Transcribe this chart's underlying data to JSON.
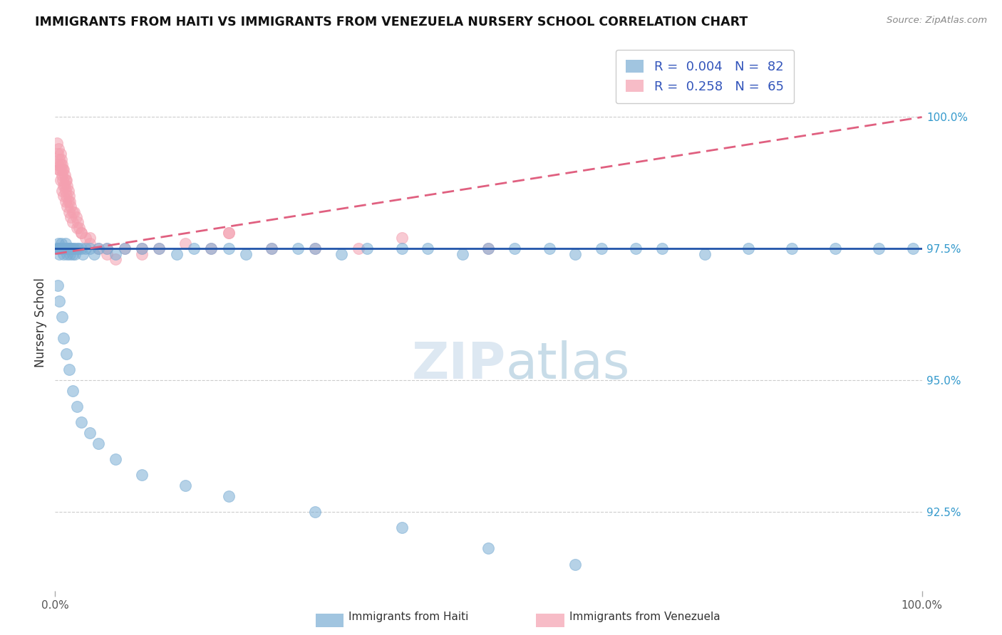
{
  "title": "IMMIGRANTS FROM HAITI VS IMMIGRANTS FROM VENEZUELA NURSERY SCHOOL CORRELATION CHART",
  "source": "Source: ZipAtlas.com",
  "ylabel": "Nursery School",
  "haiti_color": "#7aadd4",
  "venezuela_color": "#f4a0b0",
  "haiti_line_color": "#2255aa",
  "venezuela_line_color": "#e06080",
  "legend": {
    "haiti_R": "0.004",
    "haiti_N": "82",
    "venezuela_R": "0.258",
    "venezuela_N": "65"
  },
  "right_yticks": [
    100.0,
    97.5,
    95.0,
    92.5
  ],
  "right_ytick_labels": [
    "100.0%",
    "97.5%",
    "95.0%",
    "92.5%"
  ],
  "xmin": 0.0,
  "xmax": 100.0,
  "ymin": 91.0,
  "ymax": 101.2,
  "haiti_x": [
    0.2,
    0.3,
    0.4,
    0.4,
    0.5,
    0.5,
    0.6,
    0.7,
    0.8,
    0.9,
    1.0,
    1.1,
    1.2,
    1.3,
    1.4,
    1.5,
    1.6,
    1.7,
    1.8,
    1.9,
    2.0,
    2.1,
    2.2,
    2.3,
    2.5,
    2.7,
    3.0,
    3.2,
    3.5,
    4.0,
    4.5,
    5.0,
    6.0,
    7.0,
    8.0,
    10.0,
    12.0,
    14.0,
    16.0,
    18.0,
    20.0,
    22.0,
    25.0,
    28.0,
    30.0,
    33.0,
    36.0,
    40.0,
    43.0,
    47.0,
    50.0,
    53.0,
    57.0,
    60.0,
    63.0,
    67.0,
    70.0,
    75.0,
    80.0,
    85.0,
    90.0,
    95.0,
    99.0,
    0.3,
    0.5,
    0.8,
    1.0,
    1.3,
    1.6,
    2.0,
    2.5,
    3.0,
    4.0,
    5.0,
    7.0,
    10.0,
    15.0,
    20.0,
    30.0,
    40.0,
    50.0,
    60.0
  ],
  "haiti_y": [
    97.5,
    97.5,
    97.5,
    97.6,
    97.5,
    97.4,
    97.5,
    97.6,
    97.5,
    97.5,
    97.4,
    97.5,
    97.6,
    97.5,
    97.4,
    97.5,
    97.5,
    97.4,
    97.5,
    97.5,
    97.4,
    97.5,
    97.5,
    97.4,
    97.5,
    97.5,
    97.5,
    97.4,
    97.5,
    97.5,
    97.4,
    97.5,
    97.5,
    97.4,
    97.5,
    97.5,
    97.5,
    97.4,
    97.5,
    97.5,
    97.5,
    97.4,
    97.5,
    97.5,
    97.5,
    97.4,
    97.5,
    97.5,
    97.5,
    97.4,
    97.5,
    97.5,
    97.5,
    97.4,
    97.5,
    97.5,
    97.5,
    97.4,
    97.5,
    97.5,
    97.5,
    97.5,
    97.5,
    96.8,
    96.5,
    96.2,
    95.8,
    95.5,
    95.2,
    94.8,
    94.5,
    94.2,
    94.0,
    93.8,
    93.5,
    93.2,
    93.0,
    92.8,
    92.5,
    92.2,
    91.8,
    91.5
  ],
  "venezuela_x": [
    0.2,
    0.3,
    0.3,
    0.4,
    0.5,
    0.5,
    0.6,
    0.6,
    0.7,
    0.7,
    0.8,
    0.8,
    0.9,
    0.9,
    1.0,
    1.0,
    1.1,
    1.1,
    1.2,
    1.2,
    1.3,
    1.3,
    1.4,
    1.5,
    1.5,
    1.6,
    1.7,
    1.8,
    2.0,
    2.2,
    2.4,
    2.6,
    2.8,
    3.0,
    3.5,
    4.0,
    5.0,
    6.0,
    7.0,
    8.0,
    10.0,
    12.0,
    15.0,
    18.0,
    20.0,
    25.0,
    30.0,
    35.0,
    40.0,
    50.0,
    0.4,
    0.6,
    0.8,
    1.0,
    1.2,
    1.4,
    1.6,
    1.8,
    2.0,
    2.5,
    3.0,
    4.0,
    6.0,
    10.0,
    20.0
  ],
  "venezuela_y": [
    99.5,
    99.3,
    99.1,
    99.4,
    99.2,
    99.0,
    99.3,
    99.1,
    99.2,
    99.0,
    99.1,
    98.9,
    99.0,
    98.8,
    99.0,
    98.7,
    98.9,
    98.7,
    98.8,
    98.6,
    98.8,
    98.5,
    98.7,
    98.6,
    98.4,
    98.5,
    98.4,
    98.3,
    98.2,
    98.2,
    98.1,
    98.0,
    97.9,
    97.8,
    97.7,
    97.6,
    97.5,
    97.4,
    97.3,
    97.5,
    97.4,
    97.5,
    97.6,
    97.5,
    97.8,
    97.5,
    97.5,
    97.5,
    97.7,
    97.5,
    99.0,
    98.8,
    98.6,
    98.5,
    98.4,
    98.3,
    98.2,
    98.1,
    98.0,
    97.9,
    97.8,
    97.7,
    97.5,
    97.5,
    97.8
  ],
  "haiti_trend_y0": 97.5,
  "haiti_trend_y1": 97.5,
  "venezuela_trend_y0": 97.4,
  "venezuela_trend_y1": 100.0
}
